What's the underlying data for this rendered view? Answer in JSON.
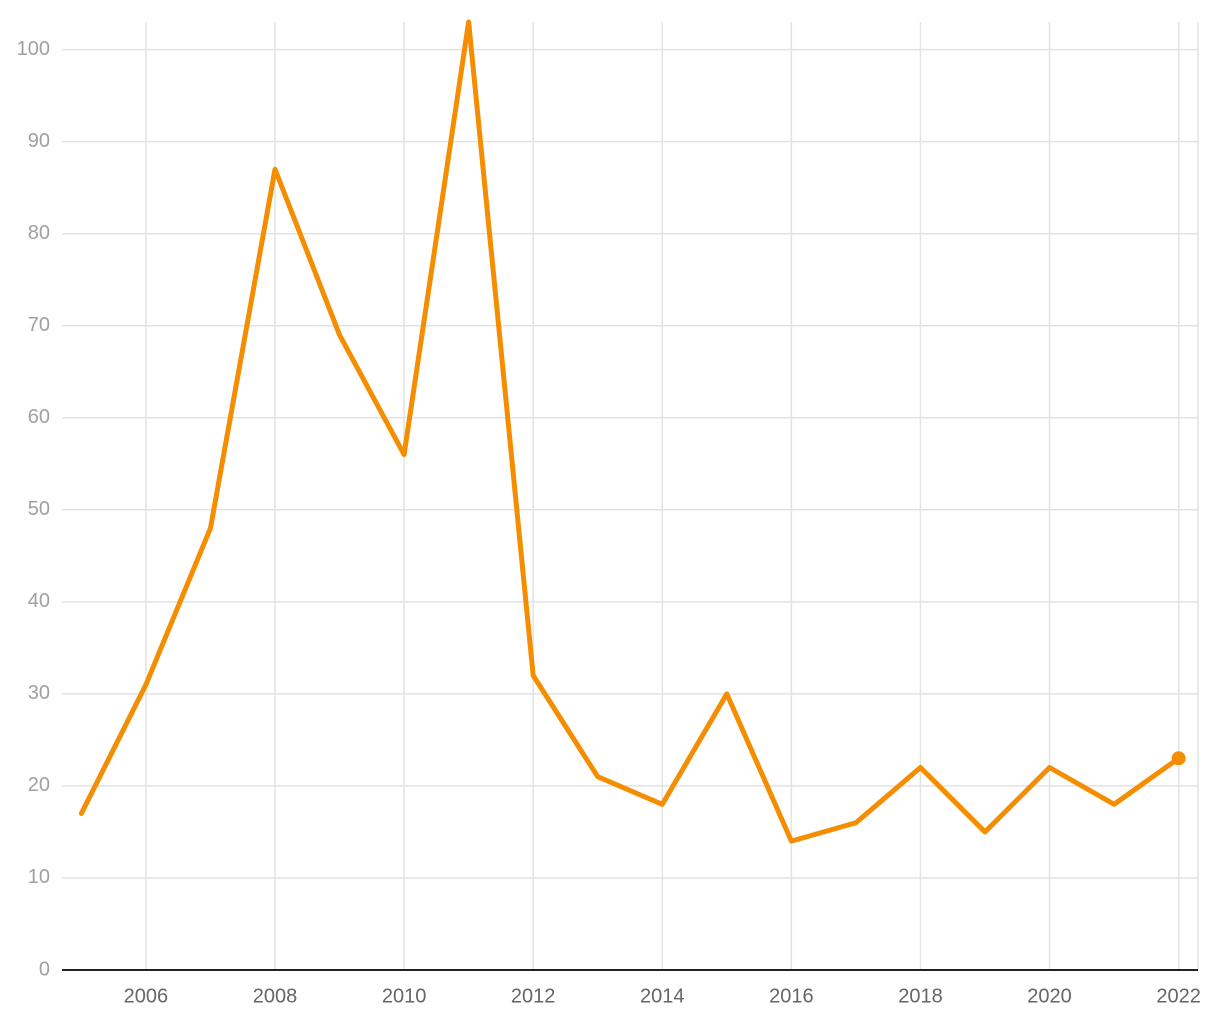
{
  "chart_data": {
    "type": "line",
    "x": [
      2005,
      2006,
      2007,
      2008,
      2009,
      2010,
      2011,
      2012,
      2013,
      2014,
      2015,
      2016,
      2017,
      2018,
      2019,
      2020,
      2021,
      2022
    ],
    "series": [
      {
        "color": "#f58d00",
        "values": [
          17,
          31,
          48,
          87,
          69,
          56,
          103,
          32,
          21,
          18,
          30,
          14,
          16,
          22,
          15,
          22,
          18,
          23
        ]
      }
    ],
    "xlim": [
      2004.7,
      2022.3
    ],
    "ylim": [
      0,
      103
    ],
    "xticks": [
      2006,
      2008,
      2010,
      2012,
      2014,
      2016,
      2018,
      2020,
      2022
    ],
    "yticks": [
      0,
      10,
      20,
      30,
      40,
      50,
      60,
      70,
      80,
      90,
      100
    ],
    "grid": true,
    "end_marker": true
  }
}
